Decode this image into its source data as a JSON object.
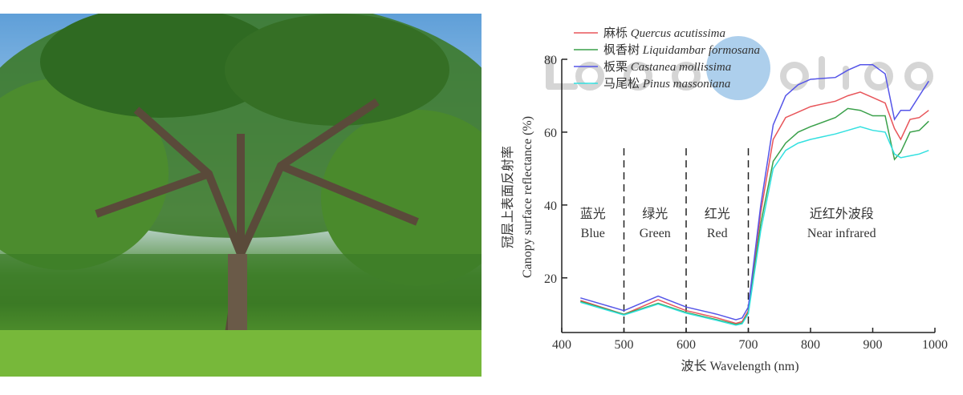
{
  "photo": {
    "subject": "tree"
  },
  "watermark": "LiSen Optics",
  "chart_data": {
    "type": "line",
    "xlabel": "波长 Wavelength (nm)",
    "ylabel_cn": "冠层上表面反射率",
    "ylabel": "Canopy surface reflectance (%)",
    "xlim": [
      400,
      1000
    ],
    "ylim": [
      5,
      80
    ],
    "xticks": [
      400,
      500,
      600,
      700,
      800,
      900,
      1000
    ],
    "yticks": [
      20,
      40,
      60,
      80
    ],
    "grid": false,
    "legend_position": "top-left",
    "band_dividers": [
      500,
      600,
      700
    ],
    "bands": [
      {
        "cn": "蓝光",
        "en": "Blue",
        "center": 450
      },
      {
        "cn": "绿光",
        "en": "Green",
        "center": 550
      },
      {
        "cn": "红光",
        "en": "Red",
        "center": 650
      },
      {
        "cn": "近红外波段",
        "en": "Near infrared",
        "center": 850
      }
    ],
    "x": [
      430,
      500,
      555,
      600,
      650,
      680,
      690,
      700,
      720,
      740,
      760,
      780,
      800,
      840,
      860,
      880,
      900,
      920,
      935,
      945,
      960,
      975,
      990
    ],
    "series": [
      {
        "name_cn": "麻栎",
        "name": "Quercus acutissima",
        "color": "#e8555a",
        "values": [
          13.8,
          10,
          14,
          11,
          9,
          7.5,
          8,
          11,
          38,
          58,
          64,
          65.5,
          67,
          68.5,
          70,
          71,
          69.5,
          68,
          61,
          58,
          63.5,
          64,
          66
        ]
      },
      {
        "name_cn": "枫香树",
        "name": "Liquidambar formosana",
        "color": "#3aa04a",
        "values": [
          13.5,
          10,
          13,
          10.5,
          8.5,
          7.2,
          7.6,
          10.5,
          35,
          52,
          57,
          60,
          61.5,
          64,
          66.5,
          66,
          64.5,
          64.5,
          52.5,
          54.5,
          60,
          60.5,
          63
        ]
      },
      {
        "name_cn": "板栗",
        "name": "Castanea mollissima",
        "color": "#5555e8",
        "values": [
          14.5,
          11,
          15,
          12,
          10,
          8.5,
          9,
          12,
          40,
          62,
          70,
          73,
          74.5,
          75,
          77,
          78.5,
          78.5,
          76,
          63.5,
          66,
          66,
          70,
          74
        ]
      },
      {
        "name_cn": "马尾松",
        "name": "Pinus massoniana",
        "color": "#33e0e0",
        "values": [
          13.3,
          9.8,
          12.8,
          10.3,
          8.3,
          7,
          7.4,
          10.2,
          33,
          50,
          55,
          57,
          58,
          59.5,
          60.5,
          61.5,
          60.5,
          60,
          54,
          53,
          53.5,
          54,
          55
        ]
      }
    ]
  }
}
